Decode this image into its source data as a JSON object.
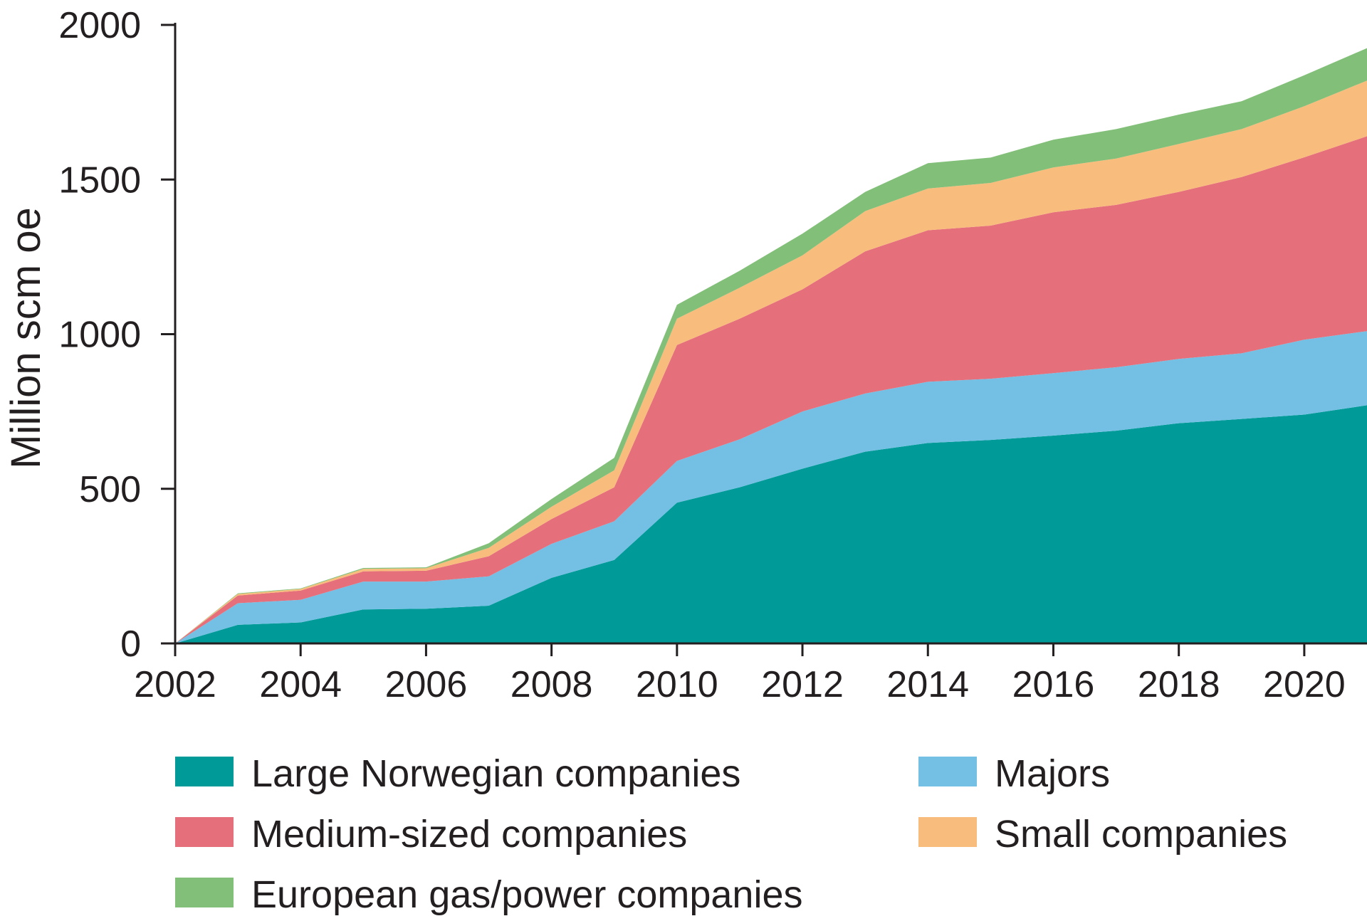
{
  "chart_data": {
    "type": "area",
    "stacked": true,
    "title": "",
    "xlabel": "",
    "ylabel": "Million scm oe",
    "ylim": [
      0,
      2000
    ],
    "xlim": [
      2002,
      2021
    ],
    "yticks": [
      0,
      500,
      1000,
      1500,
      2000
    ],
    "xticks": [
      2002,
      2004,
      2006,
      2008,
      2010,
      2012,
      2014,
      2016,
      2018,
      2020
    ],
    "grid": false,
    "legend_position": "bottom",
    "x": [
      2002,
      2003,
      2004,
      2005,
      2006,
      2007,
      2008,
      2009,
      2010,
      2011,
      2012,
      2013,
      2014,
      2015,
      2016,
      2017,
      2018,
      2019,
      2020,
      2021
    ],
    "series": [
      {
        "name": "Large Norwegian companies",
        "color": "#009b98",
        "values": [
          0,
          60,
          68,
          110,
          112,
          122,
          212,
          270,
          455,
          505,
          565,
          620,
          648,
          658,
          672,
          688,
          712,
          726,
          740,
          770
        ]
      },
      {
        "name": "Majors",
        "color": "#74bfe4",
        "values": [
          0,
          70,
          73,
          90,
          88,
          95,
          110,
          125,
          135,
          155,
          185,
          188,
          198,
          198,
          202,
          205,
          208,
          212,
          242,
          240
        ]
      },
      {
        "name": "Medium-sized companies",
        "color": "#e56f7b",
        "values": [
          0,
          25,
          30,
          33,
          35,
          65,
          80,
          110,
          375,
          390,
          395,
          460,
          490,
          495,
          520,
          525,
          540,
          570,
          590,
          630
        ]
      },
      {
        "name": "Small companies",
        "color": "#f8bd7d",
        "values": [
          0,
          5,
          5,
          8,
          8,
          27,
          40,
          55,
          85,
          100,
          110,
          130,
          135,
          138,
          145,
          150,
          155,
          155,
          165,
          180
        ]
      },
      {
        "name": "European gas/power companies",
        "color": "#82bf78",
        "values": [
          0,
          2,
          2,
          3,
          3,
          15,
          25,
          40,
          45,
          55,
          70,
          62,
          82,
          82,
          90,
          95,
          95,
          90,
          100,
          105
        ]
      }
    ],
    "legend": [
      "Large Norwegian companies",
      "Majors",
      "Medium-sized companies",
      "Small companies",
      "European gas/power companies"
    ]
  }
}
